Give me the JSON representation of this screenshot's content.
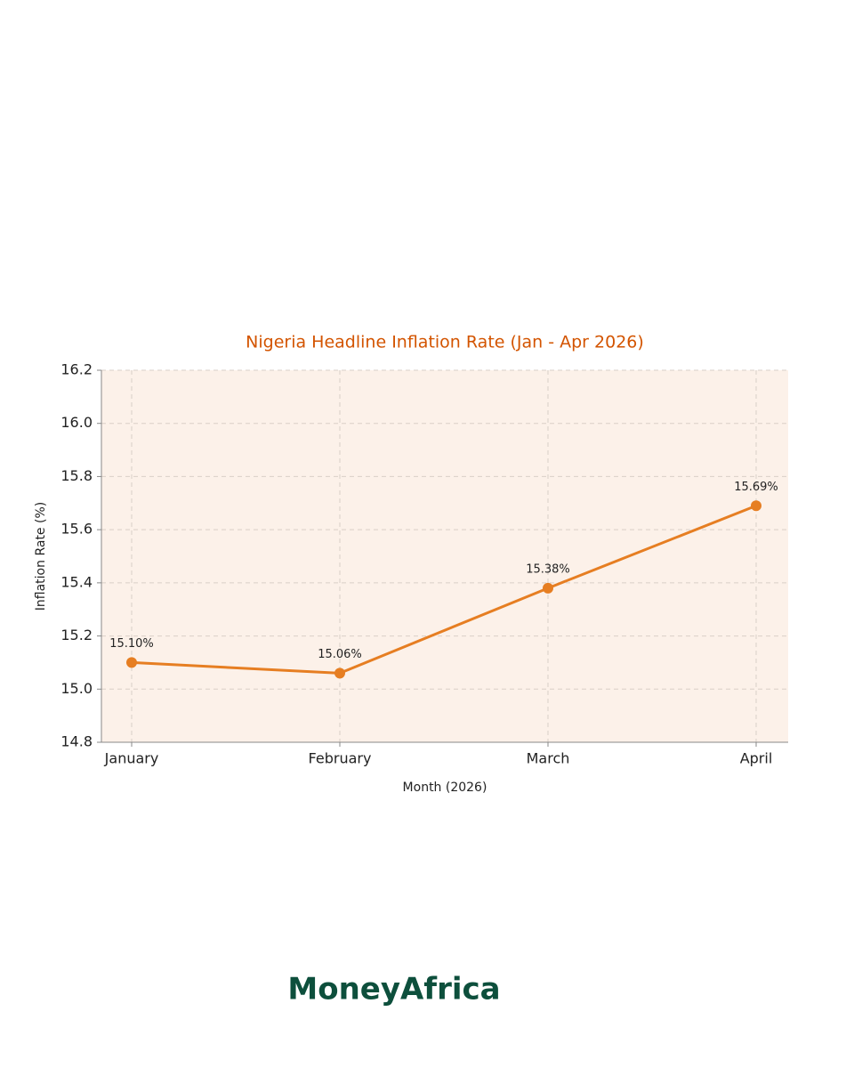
{
  "chart_data": {
    "type": "line",
    "title": "Nigeria Headline Inflation Rate (Jan - Apr 2026)",
    "x_label": "Month (2026)",
    "y_label": "Inflation Rate (%)",
    "categories": [
      "January",
      "February",
      "March",
      "April"
    ],
    "values": [
      15.1,
      15.06,
      15.38,
      15.69
    ],
    "value_labels": [
      "15.10%",
      "15.06%",
      "15.38%",
      "15.69%"
    ],
    "color": "#e67e22",
    "ylim": [
      14.8,
      16.2
    ],
    "yticks": [
      14.8,
      {
        "value": 15,
        "label": "15.0"
      },
      15.2,
      15.4,
      15.6,
      15.8,
      {
        "value": 16,
        "label": "16.0"
      },
      16.2
    ],
    "grid": true
  },
  "brand": "MoneyAfrica"
}
